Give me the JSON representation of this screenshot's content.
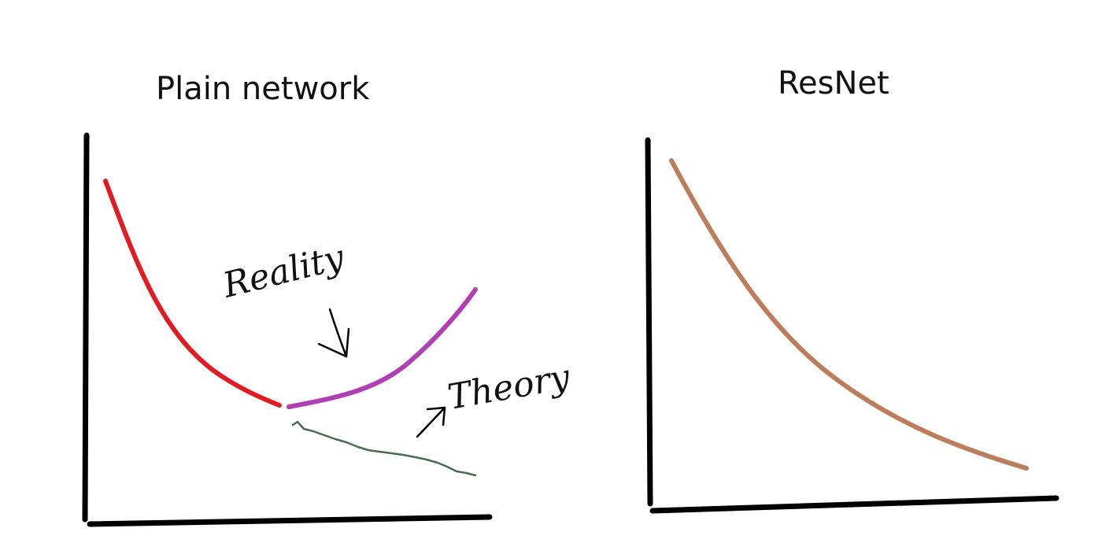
{
  "panels": [
    {
      "title": "Plain network",
      "annotations": {
        "reality": "Reality",
        "theory": "Theory"
      },
      "colors": {
        "decreasing_curve": "#e21b23",
        "reality_curve": "#b03fb6",
        "theory_curve": "#4a6b4f",
        "axes": "#000000"
      }
    },
    {
      "title": "ResNet",
      "colors": {
        "curve": "#bd7d5a",
        "axes": "#000000"
      }
    }
  ]
}
